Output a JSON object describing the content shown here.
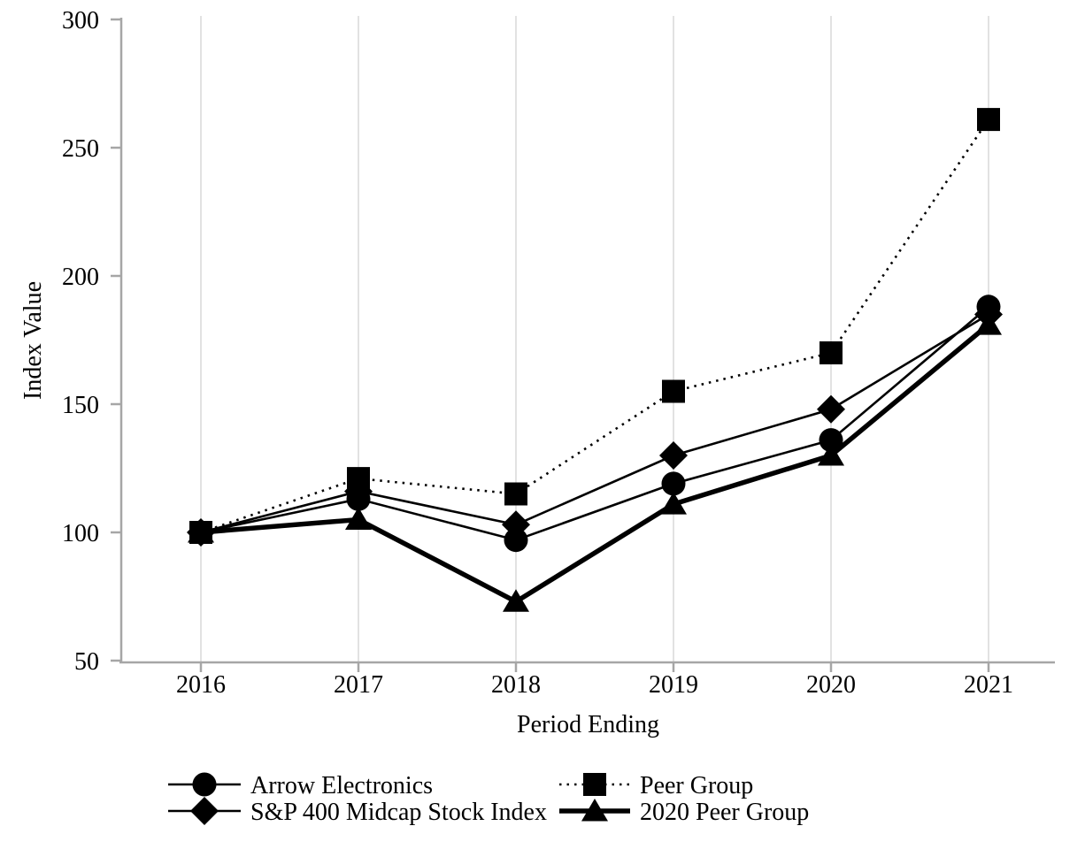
{
  "page": {
    "background": "#ffffff"
  },
  "chart_data": {
    "type": "line",
    "title": "",
    "xlabel": "Period Ending",
    "ylabel": "Index Value",
    "x_categories": [
      "2016",
      "2017",
      "2018",
      "2019",
      "2020",
      "2021"
    ],
    "ylim": [
      50,
      300
    ],
    "yticks": [
      50,
      100,
      150,
      200,
      250,
      300
    ],
    "grid": "vertical-only",
    "legend_position": "bottom",
    "series": [
      {
        "name": "Arrow Electronics",
        "marker": "circle",
        "line": "solid-thin",
        "values": [
          100,
          113,
          97,
          119,
          136,
          188
        ]
      },
      {
        "name": "Peer Group",
        "marker": "square",
        "line": "dotted",
        "values": [
          100,
          121,
          115,
          155,
          170,
          261
        ]
      },
      {
        "name": "S&P 400 Midcap Stock Index",
        "marker": "diamond",
        "line": "solid-thin",
        "values": [
          100,
          116,
          103,
          130,
          148,
          185
        ]
      },
      {
        "name": "2020 Peer Group",
        "marker": "triangle",
        "line": "solid-thick",
        "values": [
          100,
          105,
          73,
          111,
          130,
          181
        ]
      }
    ],
    "colors": {
      "series": "#000000",
      "gridline": "#e2e2e2",
      "axis": "#a6a6a6",
      "text": "#000000"
    },
    "legend_columns": [
      [
        0,
        2
      ],
      [
        1,
        3
      ]
    ],
    "draw_order": [
      1,
      2,
      0,
      3
    ]
  }
}
